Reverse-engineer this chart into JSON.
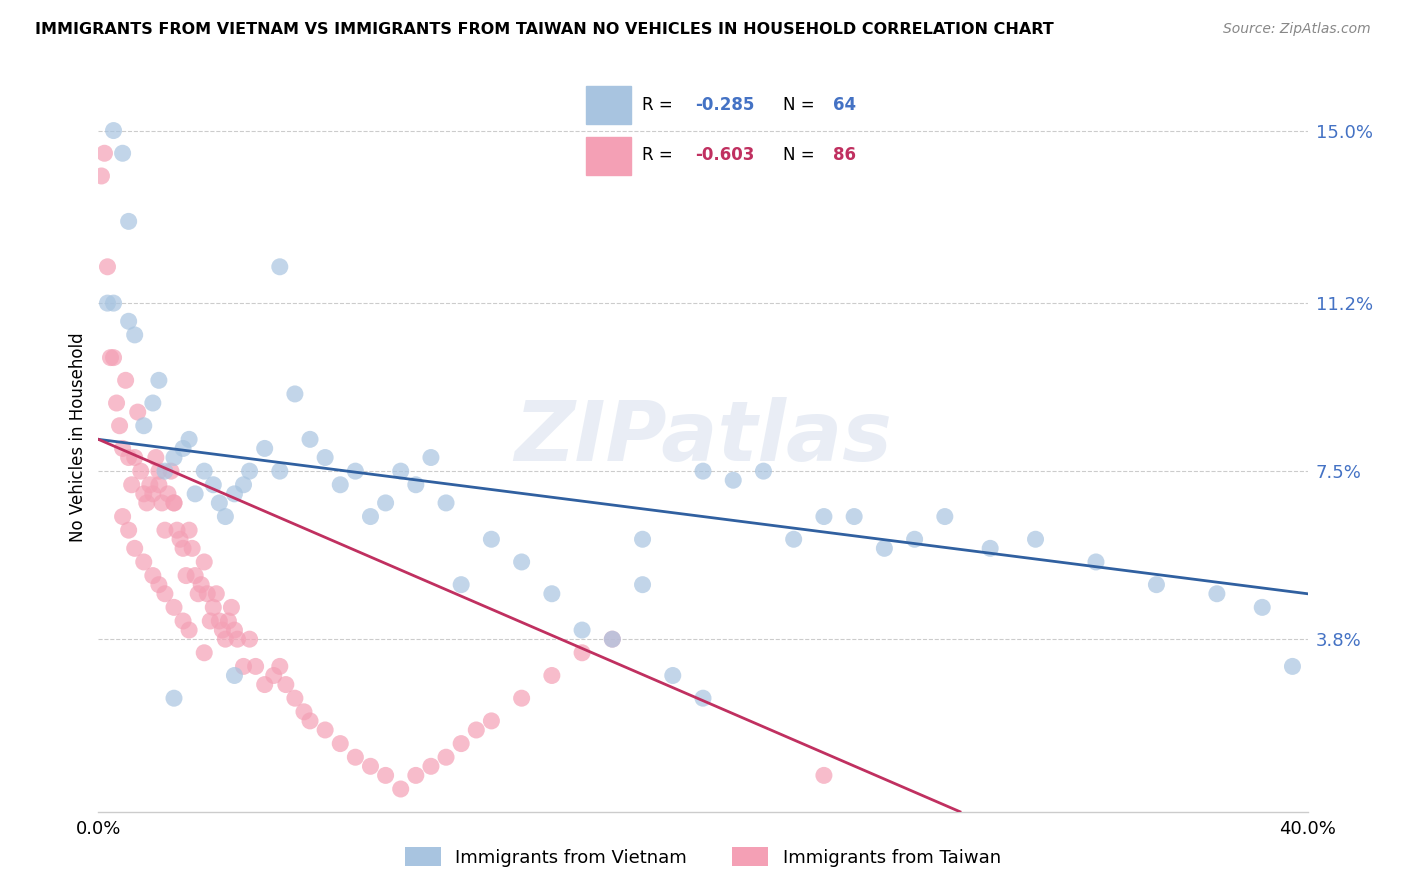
{
  "title": "IMMIGRANTS FROM VIETNAM VS IMMIGRANTS FROM TAIWAN NO VEHICLES IN HOUSEHOLD CORRELATION CHART",
  "source": "Source: ZipAtlas.com",
  "ylabel": "No Vehicles in Household",
  "xlim": [
    0.0,
    0.4
  ],
  "ylim": [
    0.0,
    0.165
  ],
  "xtick_positions": [
    0.0,
    0.05,
    0.1,
    0.15,
    0.2,
    0.25,
    0.3,
    0.35,
    0.4
  ],
  "xticklabels": [
    "0.0%",
    "",
    "",
    "",
    "",
    "",
    "",
    "",
    "40.0%"
  ],
  "ytick_positions": [
    0.038,
    0.075,
    0.112,
    0.15
  ],
  "ytick_labels": [
    "3.8%",
    "7.5%",
    "11.2%",
    "15.0%"
  ],
  "legend_vietnam": "Immigrants from Vietnam",
  "legend_taiwan": "Immigrants from Taiwan",
  "R_vietnam": "-0.285",
  "N_vietnam": "64",
  "R_taiwan": "-0.603",
  "N_taiwan": "86",
  "color_vietnam": "#a8c4e0",
  "color_taiwan": "#f4a0b5",
  "line_color_vietnam": "#3060a0",
  "line_color_taiwan": "#c03060",
  "watermark": "ZIPatlas",
  "vietnam_x": [
    0.003,
    0.005,
    0.008,
    0.01,
    0.012,
    0.015,
    0.018,
    0.02,
    0.022,
    0.025,
    0.028,
    0.03,
    0.032,
    0.035,
    0.038,
    0.04,
    0.042,
    0.045,
    0.048,
    0.05,
    0.055,
    0.06,
    0.065,
    0.07,
    0.075,
    0.08,
    0.085,
    0.09,
    0.095,
    0.1,
    0.105,
    0.11,
    0.115,
    0.12,
    0.13,
    0.14,
    0.15,
    0.16,
    0.17,
    0.18,
    0.19,
    0.2,
    0.21,
    0.22,
    0.23,
    0.24,
    0.25,
    0.26,
    0.27,
    0.28,
    0.295,
    0.31,
    0.33,
    0.35,
    0.37,
    0.385,
    0.395,
    0.2,
    0.18,
    0.06,
    0.045,
    0.025,
    0.01,
    0.005
  ],
  "vietnam_y": [
    0.112,
    0.15,
    0.145,
    0.108,
    0.105,
    0.085,
    0.09,
    0.095,
    0.075,
    0.078,
    0.08,
    0.082,
    0.07,
    0.075,
    0.072,
    0.068,
    0.065,
    0.07,
    0.072,
    0.075,
    0.08,
    0.075,
    0.092,
    0.082,
    0.078,
    0.072,
    0.075,
    0.065,
    0.068,
    0.075,
    0.072,
    0.078,
    0.068,
    0.05,
    0.06,
    0.055,
    0.048,
    0.04,
    0.038,
    0.06,
    0.03,
    0.075,
    0.073,
    0.075,
    0.06,
    0.065,
    0.065,
    0.058,
    0.06,
    0.065,
    0.058,
    0.06,
    0.055,
    0.05,
    0.048,
    0.045,
    0.032,
    0.025,
    0.05,
    0.12,
    0.03,
    0.025,
    0.13,
    0.112
  ],
  "taiwan_x": [
    0.001,
    0.002,
    0.003,
    0.004,
    0.005,
    0.006,
    0.007,
    0.008,
    0.009,
    0.01,
    0.011,
    0.012,
    0.013,
    0.014,
    0.015,
    0.016,
    0.017,
    0.018,
    0.019,
    0.02,
    0.021,
    0.022,
    0.023,
    0.024,
    0.025,
    0.026,
    0.027,
    0.028,
    0.029,
    0.03,
    0.031,
    0.032,
    0.033,
    0.034,
    0.035,
    0.036,
    0.037,
    0.038,
    0.039,
    0.04,
    0.041,
    0.042,
    0.043,
    0.044,
    0.045,
    0.046,
    0.048,
    0.05,
    0.052,
    0.055,
    0.058,
    0.06,
    0.062,
    0.065,
    0.068,
    0.07,
    0.075,
    0.08,
    0.085,
    0.09,
    0.095,
    0.1,
    0.105,
    0.11,
    0.115,
    0.12,
    0.125,
    0.13,
    0.14,
    0.15,
    0.16,
    0.17,
    0.008,
    0.01,
    0.012,
    0.015,
    0.018,
    0.02,
    0.022,
    0.025,
    0.028,
    0.03,
    0.035,
    0.02,
    0.025,
    0.24
  ],
  "taiwan_y": [
    0.14,
    0.145,
    0.12,
    0.1,
    0.1,
    0.09,
    0.085,
    0.08,
    0.095,
    0.078,
    0.072,
    0.078,
    0.088,
    0.075,
    0.07,
    0.068,
    0.072,
    0.07,
    0.078,
    0.072,
    0.068,
    0.062,
    0.07,
    0.075,
    0.068,
    0.062,
    0.06,
    0.058,
    0.052,
    0.062,
    0.058,
    0.052,
    0.048,
    0.05,
    0.055,
    0.048,
    0.042,
    0.045,
    0.048,
    0.042,
    0.04,
    0.038,
    0.042,
    0.045,
    0.04,
    0.038,
    0.032,
    0.038,
    0.032,
    0.028,
    0.03,
    0.032,
    0.028,
    0.025,
    0.022,
    0.02,
    0.018,
    0.015,
    0.012,
    0.01,
    0.008,
    0.005,
    0.008,
    0.01,
    0.012,
    0.015,
    0.018,
    0.02,
    0.025,
    0.03,
    0.035,
    0.038,
    0.065,
    0.062,
    0.058,
    0.055,
    0.052,
    0.05,
    0.048,
    0.045,
    0.042,
    0.04,
    0.035,
    0.075,
    0.068,
    0.008
  ],
  "vietnam_line_x0": 0.0,
  "vietnam_line_x1": 0.4,
  "vietnam_line_y0": 0.082,
  "vietnam_line_y1": 0.048,
  "taiwan_line_x0": 0.0,
  "taiwan_line_x1": 0.285,
  "taiwan_line_y0": 0.082,
  "taiwan_line_y1": 0.0
}
